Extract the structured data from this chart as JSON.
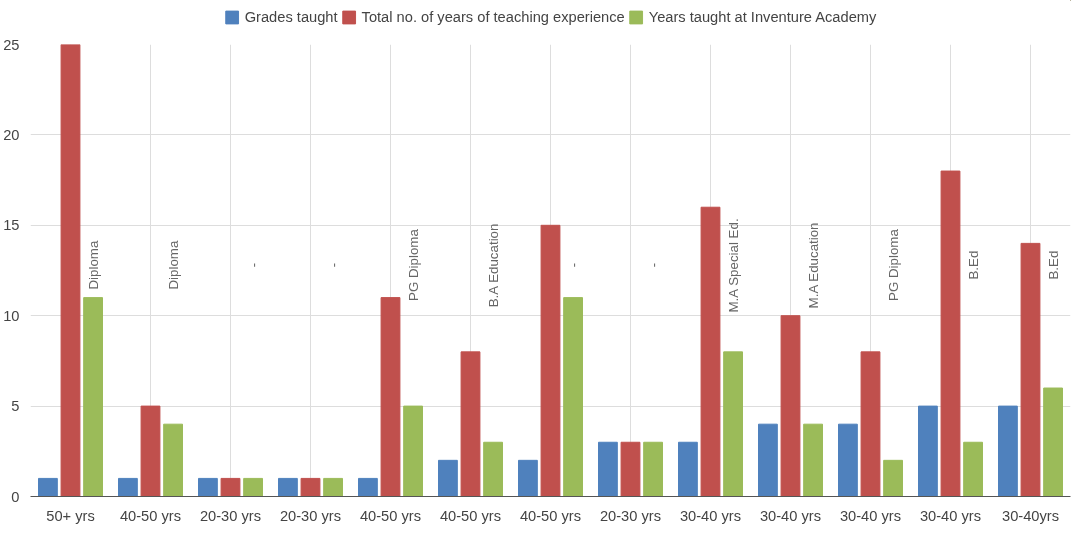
{
  "chart_data": {
    "type": "bar",
    "categories": [
      "50+ yrs",
      "40-50 yrs",
      "20-30 yrs",
      "20-30 yrs",
      "40-50 yrs",
      "40-50 yrs",
      "40-50 yrs",
      "20-30 yrs",
      "30-40 yrs",
      "30-40 yrs",
      "30-40 yrs",
      "30-40 yrs",
      "30-40yrs"
    ],
    "series": [
      {
        "name": "Grades taught",
        "color": "#4f81bd",
        "values": [
          1,
          1,
          1,
          1,
          1,
          2,
          2,
          3,
          3,
          4,
          4,
          5,
          5
        ]
      },
      {
        "name": "Total no. of years of teaching experience",
        "color": "#c0504d",
        "values": [
          25,
          5,
          1,
          1,
          11,
          8,
          15,
          3,
          16,
          10,
          8,
          18,
          14
        ]
      },
      {
        "name": "Years taught at Inventure Academy",
        "color": "#9bbb59",
        "values": [
          11,
          4,
          1,
          1,
          5,
          3,
          11,
          3,
          8,
          4,
          2,
          3,
          6
        ]
      }
    ],
    "annotations": [
      "Diploma",
      "Diploma",
      "-",
      "-",
      "PG Diploma",
      "B.A Education",
      "-",
      "-",
      "M.A Special Ed.",
      "M.A Education",
      "PG Diploma",
      "B.Ed",
      "B.Ed"
    ],
    "ylim": [
      0,
      25
    ],
    "yticks": [
      0,
      5,
      10,
      15,
      20,
      25
    ],
    "grid": true,
    "legend": "top"
  }
}
